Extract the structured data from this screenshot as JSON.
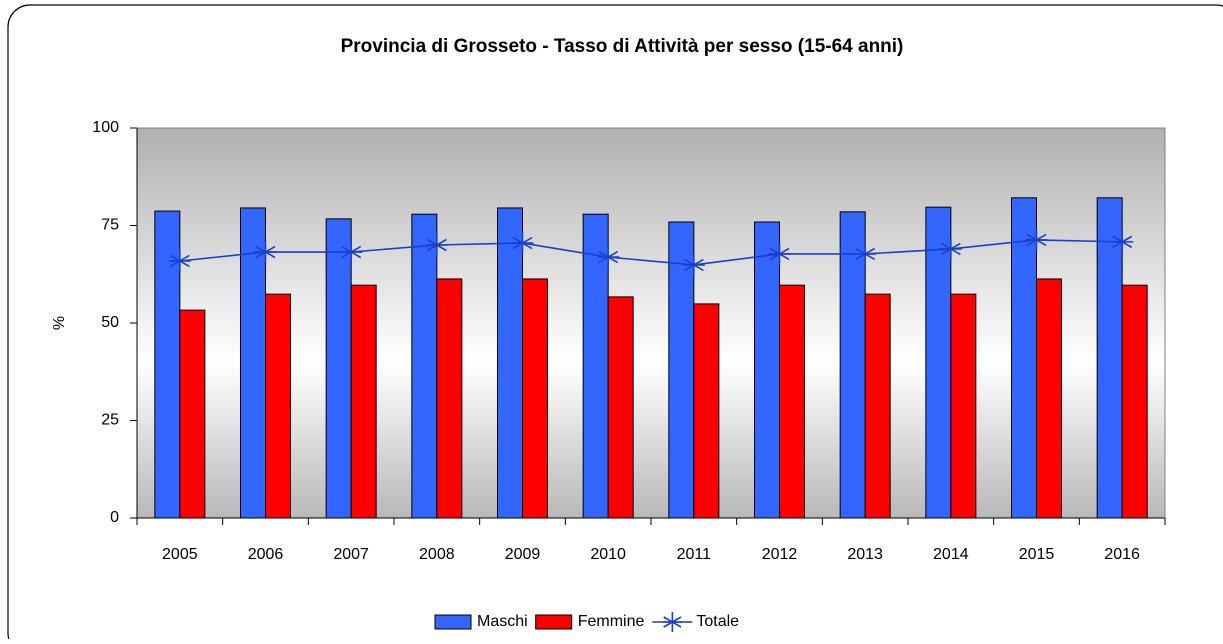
{
  "chart_data": {
    "type": "bar",
    "title": "Provincia di Grosseto - Tasso di Attività per sesso  (15-64 anni)",
    "y_label": "%",
    "categories": [
      "2005",
      "2006",
      "2007",
      "2008",
      "2009",
      "2010",
      "2011",
      "2012",
      "2013",
      "2014",
      "2015",
      "2016"
    ],
    "series": [
      {
        "name": "Maschi",
        "type": "bar",
        "color": "#3366ff",
        "values": [
          78.7,
          79.5,
          76.7,
          77.9,
          79.5,
          77.9,
          75.9,
          75.9,
          78.5,
          79.7,
          82.1,
          82.1
        ]
      },
      {
        "name": "Femmine",
        "type": "bar",
        "color": "#ff0000",
        "values": [
          53.3,
          57.4,
          59.7,
          61.3,
          61.3,
          56.7,
          54.9,
          59.7,
          57.4,
          57.4,
          61.3,
          59.7
        ]
      },
      {
        "name": "Totale",
        "type": "line",
        "color": "#1a3fcc",
        "values": [
          65.9,
          68.2,
          68.2,
          70.0,
          70.5,
          66.9,
          64.9,
          67.7,
          67.7,
          69.0,
          71.3,
          70.8
        ]
      }
    ],
    "ylim": [
      0,
      100
    ],
    "yticks": [
      0,
      25,
      50,
      75,
      100
    ],
    "legend": "bottom"
  }
}
